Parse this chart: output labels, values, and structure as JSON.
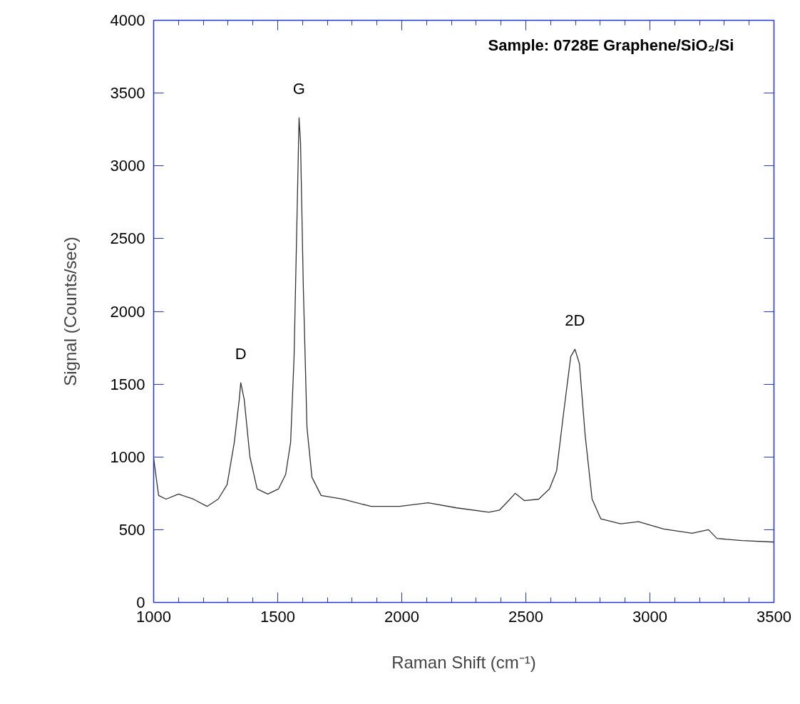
{
  "chart_data": {
    "type": "line",
    "xlabel": "Raman Shift (cm⁻¹)",
    "ylabel": "Signal (Counts/sec)",
    "xlim": [
      1000,
      3500
    ],
    "xticks": [
      1000,
      1500,
      2000,
      2500,
      3000,
      3500
    ],
    "ylim": [
      0,
      4000
    ],
    "yticks": [
      0,
      500,
      1000,
      1500,
      2000,
      2500,
      3000,
      3500,
      4000
    ],
    "grid": false,
    "marker": "none",
    "line_style": "solid",
    "annotations": [
      "Sample:  0728E Graphene/SiO₂/Si",
      {
        "text": "D",
        "x": 1351,
        "y": 1510
      },
      {
        "text": "G",
        "x": 1586,
        "y": 3330
      },
      {
        "text": "2D",
        "x": 2698,
        "y": 1740
      }
    ],
    "series": [
      {
        "color": "#333333",
        "x": [
          1000,
          1020,
          1050,
          1100,
          1160,
          1215,
          1260,
          1296,
          1325,
          1345,
          1351,
          1365,
          1388,
          1417,
          1460,
          1503,
          1532,
          1552,
          1566,
          1578,
          1586,
          1592,
          1603,
          1618,
          1638,
          1675,
          1761,
          1876,
          1991,
          2106,
          2221,
          2351,
          2394,
          2428,
          2457,
          2494,
          2552,
          2595,
          2624,
          2652,
          2681,
          2698,
          2716,
          2739,
          2767,
          2802,
          2882,
          2954,
          3055,
          3170,
          3236,
          3270,
          3371,
          3500
        ],
        "values": [
          990,
          735,
          710,
          745,
          710,
          660,
          710,
          810,
          1100,
          1395,
          1510,
          1395,
          1000,
          780,
          745,
          780,
          880,
          1100,
          1690,
          2670,
          3330,
          3160,
          2180,
          1200,
          860,
          735,
          710,
          660,
          660,
          685,
          650,
          620,
          635,
          695,
          750,
          700,
          710,
          780,
          905,
          1300,
          1690,
          1740,
          1640,
          1150,
          710,
          575,
          540,
          555,
          505,
          475,
          500,
          440,
          425,
          415
        ]
      }
    ]
  }
}
